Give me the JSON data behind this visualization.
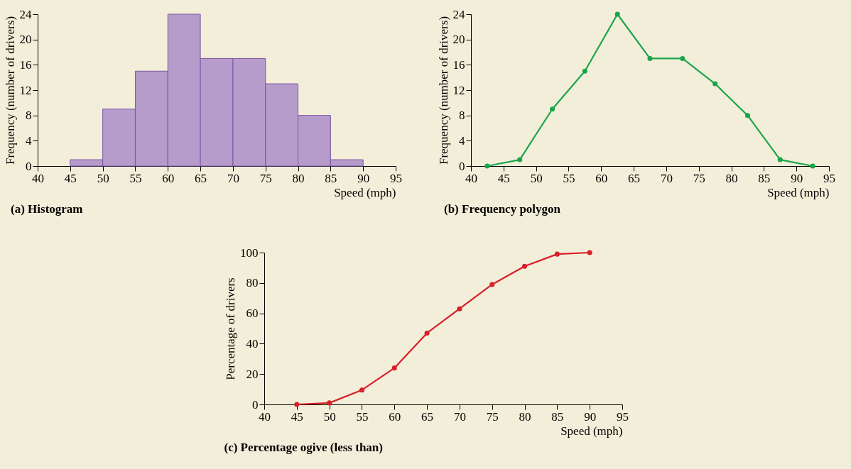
{
  "chart_data": [
    {
      "type": "histogram",
      "title": "(a) Histogram",
      "xlabel": "Speed (mph)",
      "ylabel": "Frequency (number of drivers)",
      "bins": [
        45,
        50,
        55,
        60,
        65,
        70,
        75,
        80,
        85,
        90
      ],
      "values": [
        1,
        9,
        15,
        24,
        17,
        17,
        13,
        8,
        1
      ],
      "color": "#b59ccb",
      "xlim": [
        40,
        95
      ],
      "xticks": [
        40,
        45,
        50,
        55,
        60,
        65,
        70,
        75,
        80,
        85,
        90,
        95
      ],
      "ylim": [
        0,
        24
      ],
      "yticks": [
        0,
        4,
        8,
        12,
        16,
        20,
        24
      ],
      "grid": false
    },
    {
      "type": "line",
      "title": "(b) Frequency polygon",
      "xlabel": "Speed (mph)",
      "ylabel": "Frequency (number of drivers)",
      "x": [
        42.5,
        47.5,
        52.5,
        57.5,
        62.5,
        67.5,
        72.5,
        77.5,
        82.5,
        87.5,
        92.5
      ],
      "values": [
        0,
        1,
        9,
        15,
        24,
        17,
        17,
        13,
        8,
        1,
        0
      ],
      "color": "#1aa54a",
      "marker": "circle",
      "xlim": [
        40,
        95
      ],
      "xticks": [
        40,
        45,
        50,
        55,
        60,
        65,
        70,
        75,
        80,
        85,
        90,
        95
      ],
      "ylim": [
        0,
        24
      ],
      "yticks": [
        0,
        4,
        8,
        12,
        16,
        20,
        24
      ],
      "grid": false
    },
    {
      "type": "line",
      "title": "(c) Percentage ogive (less than)",
      "xlabel": "Speed (mph)",
      "ylabel": "Percentage of drivers",
      "x": [
        45,
        50,
        55,
        60,
        65,
        70,
        75,
        80,
        85,
        90
      ],
      "values": [
        0,
        1,
        9.5,
        24,
        47,
        63,
        79,
        91,
        99,
        100
      ],
      "color": "#d7202a",
      "marker": "circle",
      "xlim": [
        40,
        95
      ],
      "xticks": [
        40,
        45,
        50,
        55,
        60,
        65,
        70,
        75,
        80,
        85,
        90,
        95
      ],
      "ylim": [
        0,
        100
      ],
      "yticks": [
        0,
        20,
        40,
        60,
        80,
        100
      ],
      "grid": false
    }
  ]
}
